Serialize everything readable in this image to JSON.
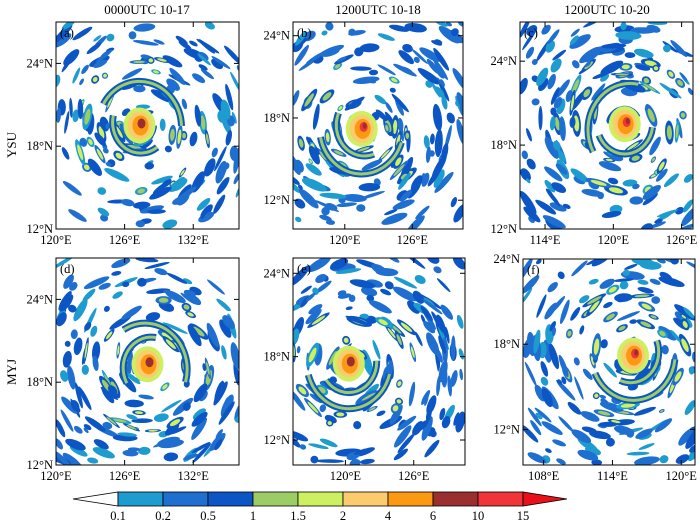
{
  "figure": {
    "column_titles": [
      "0000UTC 10-17",
      "1200UTC 10-18",
      "1200UTC 10-20"
    ],
    "row_labels": [
      "YSU",
      "MYJ"
    ]
  },
  "chart_data": {
    "type": "heatmap",
    "panels": [
      {
        "label": "(a)",
        "row": "YSU",
        "column": "0000UTC 10-17",
        "lon_range": [
          120,
          136
        ],
        "lat_range": [
          12,
          27
        ],
        "lon_ticks": [
          {
            "value": 120,
            "label": "120°E"
          },
          {
            "value": 126,
            "label": "126°E"
          },
          {
            "value": 132,
            "label": "132°E"
          }
        ],
        "lat_ticks": [
          {
            "value": 12,
            "label": "12°N"
          },
          {
            "value": 18,
            "label": "18°N"
          },
          {
            "value": 24,
            "label": "24°N"
          }
        ],
        "storm_center": [
          127.3,
          19.5
        ],
        "max_level": 6
      },
      {
        "label": "(b)",
        "row": "YSU",
        "column": "1200UTC 10-18",
        "lon_range": [
          115.4,
          130.5
        ],
        "lat_range": [
          9.9,
          25
        ],
        "lon_ticks": [
          {
            "value": 120,
            "label": "120°E"
          },
          {
            "value": 126,
            "label": "126°E"
          }
        ],
        "lat_ticks": [
          {
            "value": 12,
            "label": "12°N"
          },
          {
            "value": 18,
            "label": "18°N"
          },
          {
            "value": 24,
            "label": "24°N"
          }
        ],
        "storm_center": [
          121.5,
          17.2
        ],
        "max_level": 10
      },
      {
        "label": "(c)",
        "row": "YSU",
        "column": "1200UTC 10-20",
        "lon_range": [
          111.8,
          127
        ],
        "lat_range": [
          12,
          26.8
        ],
        "lon_ticks": [
          {
            "value": 114,
            "label": "114°E"
          },
          {
            "value": 120,
            "label": "120°E"
          },
          {
            "value": 126,
            "label": "126°E"
          }
        ],
        "lat_ticks": [
          {
            "value": 12,
            "label": "12°N"
          },
          {
            "value": 18,
            "label": "18°N"
          },
          {
            "value": 24,
            "label": "24°N"
          }
        ],
        "storm_center": [
          121,
          19.5
        ],
        "max_level": 10
      },
      {
        "label": "(d)",
        "row": "MYJ",
        "column": "0000UTC 10-17",
        "lon_range": [
          120,
          136
        ],
        "lat_range": [
          12,
          27
        ],
        "lon_ticks": [
          {
            "value": 120,
            "label": "120°E"
          },
          {
            "value": 126,
            "label": "126°E"
          },
          {
            "value": 132,
            "label": "132°E"
          }
        ],
        "lat_ticks": [
          {
            "value": 12,
            "label": "12°N"
          },
          {
            "value": 18,
            "label": "18°N"
          },
          {
            "value": 24,
            "label": "24°N"
          }
        ],
        "storm_center": [
          128,
          19.3
        ],
        "max_level": 6
      },
      {
        "label": "(e)",
        "row": "MYJ",
        "column": "1200UTC 10-18",
        "lon_range": [
          115.4,
          130.5
        ],
        "lat_range": [
          10.2,
          25.1
        ],
        "lon_ticks": [
          {
            "value": 120,
            "label": "120°E"
          },
          {
            "value": 126,
            "label": "126°E"
          }
        ],
        "lat_ticks": [
          {
            "value": 12,
            "label": "12°N"
          },
          {
            "value": 18,
            "label": "18°N"
          },
          {
            "value": 24,
            "label": "24°N"
          }
        ],
        "storm_center": [
          120.3,
          17.5
        ],
        "max_level": 6
      },
      {
        "label": "(f)",
        "row": "MYJ",
        "column": "1200UTC 10-20",
        "lon_range": [
          106.2,
          121.2
        ],
        "lat_range": [
          9.5,
          24
        ],
        "lon_ticks": [
          {
            "value": 108,
            "label": "108°E"
          },
          {
            "value": 114,
            "label": "114°E"
          },
          {
            "value": 120,
            "label": "120°E"
          }
        ],
        "lat_ticks": [
          {
            "value": 12,
            "label": "12°N"
          },
          {
            "value": 18,
            "label": "18°N"
          },
          {
            "value": 24,
            "label": "24°N"
          }
        ],
        "storm_center": [
          115.8,
          17.2
        ],
        "max_level": 10
      }
    ],
    "colorbar": {
      "levels": [
        "0.1",
        "0.2",
        "0.5",
        "1",
        "1.5",
        "2",
        "4",
        "6",
        "10",
        "15"
      ],
      "under_color": "#ffffff",
      "colors": [
        "#1e9bcf",
        "#1f6fd0",
        "#0b56c4",
        "#9ccc66",
        "#ccf060",
        "#fccb6e",
        "#fb9a12",
        "#9b2f2f",
        "#f0343a"
      ],
      "over_color": "#e8101a",
      "orientation": "horizontal",
      "placement": "bottom"
    }
  }
}
